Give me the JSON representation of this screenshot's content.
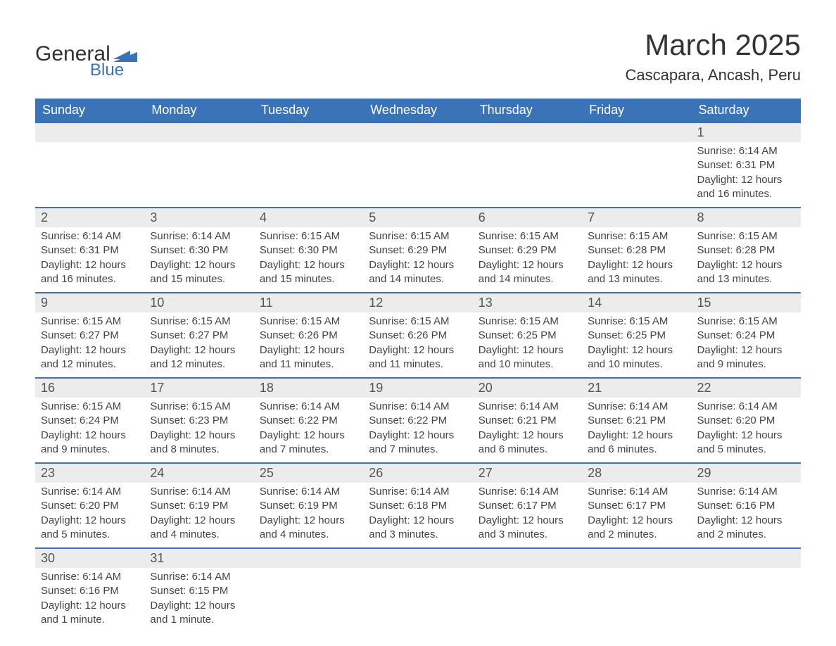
{
  "logo": {
    "text1": "General",
    "text2": "Blue"
  },
  "header": {
    "month_title": "March 2025",
    "location": "Cascapara, Ancash, Peru"
  },
  "calendar": {
    "header_bg": "#3b73b9",
    "header_fg": "#ffffff",
    "daynum_bg": "#ececec",
    "row_border": "#3b73b9",
    "text_color": "#444444",
    "day_headers": [
      "Sunday",
      "Monday",
      "Tuesday",
      "Wednesday",
      "Thursday",
      "Friday",
      "Saturday"
    ],
    "weeks": [
      [
        null,
        null,
        null,
        null,
        null,
        null,
        {
          "n": "1",
          "sr": "Sunrise: 6:14 AM",
          "ss": "Sunset: 6:31 PM",
          "dl": "Daylight: 12 hours and 16 minutes."
        }
      ],
      [
        {
          "n": "2",
          "sr": "Sunrise: 6:14 AM",
          "ss": "Sunset: 6:31 PM",
          "dl": "Daylight: 12 hours and 16 minutes."
        },
        {
          "n": "3",
          "sr": "Sunrise: 6:14 AM",
          "ss": "Sunset: 6:30 PM",
          "dl": "Daylight: 12 hours and 15 minutes."
        },
        {
          "n": "4",
          "sr": "Sunrise: 6:15 AM",
          "ss": "Sunset: 6:30 PM",
          "dl": "Daylight: 12 hours and 15 minutes."
        },
        {
          "n": "5",
          "sr": "Sunrise: 6:15 AM",
          "ss": "Sunset: 6:29 PM",
          "dl": "Daylight: 12 hours and 14 minutes."
        },
        {
          "n": "6",
          "sr": "Sunrise: 6:15 AM",
          "ss": "Sunset: 6:29 PM",
          "dl": "Daylight: 12 hours and 14 minutes."
        },
        {
          "n": "7",
          "sr": "Sunrise: 6:15 AM",
          "ss": "Sunset: 6:28 PM",
          "dl": "Daylight: 12 hours and 13 minutes."
        },
        {
          "n": "8",
          "sr": "Sunrise: 6:15 AM",
          "ss": "Sunset: 6:28 PM",
          "dl": "Daylight: 12 hours and 13 minutes."
        }
      ],
      [
        {
          "n": "9",
          "sr": "Sunrise: 6:15 AM",
          "ss": "Sunset: 6:27 PM",
          "dl": "Daylight: 12 hours and 12 minutes."
        },
        {
          "n": "10",
          "sr": "Sunrise: 6:15 AM",
          "ss": "Sunset: 6:27 PM",
          "dl": "Daylight: 12 hours and 12 minutes."
        },
        {
          "n": "11",
          "sr": "Sunrise: 6:15 AM",
          "ss": "Sunset: 6:26 PM",
          "dl": "Daylight: 12 hours and 11 minutes."
        },
        {
          "n": "12",
          "sr": "Sunrise: 6:15 AM",
          "ss": "Sunset: 6:26 PM",
          "dl": "Daylight: 12 hours and 11 minutes."
        },
        {
          "n": "13",
          "sr": "Sunrise: 6:15 AM",
          "ss": "Sunset: 6:25 PM",
          "dl": "Daylight: 12 hours and 10 minutes."
        },
        {
          "n": "14",
          "sr": "Sunrise: 6:15 AM",
          "ss": "Sunset: 6:25 PM",
          "dl": "Daylight: 12 hours and 10 minutes."
        },
        {
          "n": "15",
          "sr": "Sunrise: 6:15 AM",
          "ss": "Sunset: 6:24 PM",
          "dl": "Daylight: 12 hours and 9 minutes."
        }
      ],
      [
        {
          "n": "16",
          "sr": "Sunrise: 6:15 AM",
          "ss": "Sunset: 6:24 PM",
          "dl": "Daylight: 12 hours and 9 minutes."
        },
        {
          "n": "17",
          "sr": "Sunrise: 6:15 AM",
          "ss": "Sunset: 6:23 PM",
          "dl": "Daylight: 12 hours and 8 minutes."
        },
        {
          "n": "18",
          "sr": "Sunrise: 6:14 AM",
          "ss": "Sunset: 6:22 PM",
          "dl": "Daylight: 12 hours and 7 minutes."
        },
        {
          "n": "19",
          "sr": "Sunrise: 6:14 AM",
          "ss": "Sunset: 6:22 PM",
          "dl": "Daylight: 12 hours and 7 minutes."
        },
        {
          "n": "20",
          "sr": "Sunrise: 6:14 AM",
          "ss": "Sunset: 6:21 PM",
          "dl": "Daylight: 12 hours and 6 minutes."
        },
        {
          "n": "21",
          "sr": "Sunrise: 6:14 AM",
          "ss": "Sunset: 6:21 PM",
          "dl": "Daylight: 12 hours and 6 minutes."
        },
        {
          "n": "22",
          "sr": "Sunrise: 6:14 AM",
          "ss": "Sunset: 6:20 PM",
          "dl": "Daylight: 12 hours and 5 minutes."
        }
      ],
      [
        {
          "n": "23",
          "sr": "Sunrise: 6:14 AM",
          "ss": "Sunset: 6:20 PM",
          "dl": "Daylight: 12 hours and 5 minutes."
        },
        {
          "n": "24",
          "sr": "Sunrise: 6:14 AM",
          "ss": "Sunset: 6:19 PM",
          "dl": "Daylight: 12 hours and 4 minutes."
        },
        {
          "n": "25",
          "sr": "Sunrise: 6:14 AM",
          "ss": "Sunset: 6:19 PM",
          "dl": "Daylight: 12 hours and 4 minutes."
        },
        {
          "n": "26",
          "sr": "Sunrise: 6:14 AM",
          "ss": "Sunset: 6:18 PM",
          "dl": "Daylight: 12 hours and 3 minutes."
        },
        {
          "n": "27",
          "sr": "Sunrise: 6:14 AM",
          "ss": "Sunset: 6:17 PM",
          "dl": "Daylight: 12 hours and 3 minutes."
        },
        {
          "n": "28",
          "sr": "Sunrise: 6:14 AM",
          "ss": "Sunset: 6:17 PM",
          "dl": "Daylight: 12 hours and 2 minutes."
        },
        {
          "n": "29",
          "sr": "Sunrise: 6:14 AM",
          "ss": "Sunset: 6:16 PM",
          "dl": "Daylight: 12 hours and 2 minutes."
        }
      ],
      [
        {
          "n": "30",
          "sr": "Sunrise: 6:14 AM",
          "ss": "Sunset: 6:16 PM",
          "dl": "Daylight: 12 hours and 1 minute."
        },
        {
          "n": "31",
          "sr": "Sunrise: 6:14 AM",
          "ss": "Sunset: 6:15 PM",
          "dl": "Daylight: 12 hours and 1 minute."
        },
        null,
        null,
        null,
        null,
        null
      ]
    ]
  }
}
